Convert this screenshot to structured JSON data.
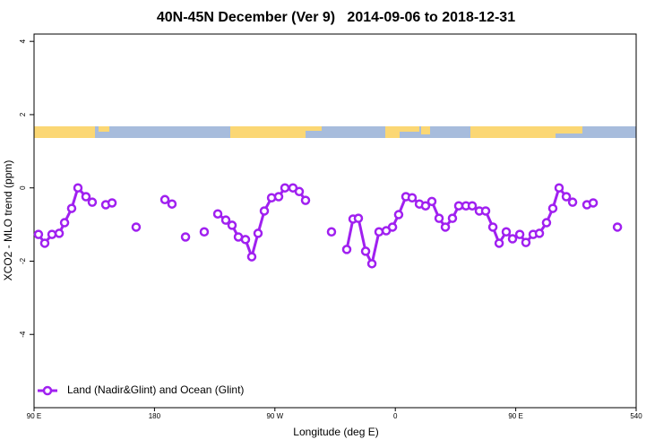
{
  "chart_data": {
    "type": "line",
    "title": "40N-45N December (Ver 9)   2014-09-06 to 2018-12-31",
    "xlabel": "Longitude (deg E)",
    "ylabel": "XCO2 - MLO trend (ppm)",
    "xlim": [
      90,
      540
    ],
    "ylim": [
      -6,
      4.2
    ],
    "xticks": [
      {
        "value": 90,
        "label": "90 E"
      },
      180,
      {
        "value": 270,
        "label": "90 W"
      },
      {
        "value": 360,
        "label": "0"
      },
      {
        "value": 450,
        "label": "90 E"
      },
      540
    ],
    "yticks": [
      4,
      2,
      0,
      -2,
      -4
    ],
    "legend": "bottom-left",
    "x": [
      93.3,
      98,
      103.4,
      108.8,
      112.8,
      118.1,
      122.8,
      128.8,
      133.5,
      138.5,
      143.6,
      148.3,
      157,
      166.3,
      177,
      187.8,
      193.1,
      198,
      203.2,
      210,
      217.2,
      222,
      227.3,
      233.3,
      238,
      242.7,
      248,
      252.7,
      257.4,
      262.1,
      267.5,
      272.8,
      277.5,
      283.5,
      288.2,
      292.9,
      302,
      312.3,
      318,
      323.7,
      328.4,
      332.4,
      337.8,
      342.5,
      347.8,
      353.2,
      357.9,
      362.5,
      367.9,
      372.6,
      378,
      382.6,
      387.3,
      392.7,
      397.4,
      402.7,
      407.4,
      412.8,
      417.5,
      422.8,
      427.5,
      432.9,
      437.6,
      442.9,
      447.6,
      453,
      457.6,
      463,
      467.7,
      473,
      477.7,
      482.4,
      487.8,
      492.5,
      498,
      503.2,
      507.9,
      517,
      526
    ],
    "series": [
      {
        "name": "Land (Nadir&Glint) and Ocean (Glint)",
        "color": "#a020f0",
        "values": [
          -1.27,
          -1.51,
          -1.27,
          -1.24,
          -0.95,
          -0.56,
          0.0,
          -0.24,
          -0.39,
          null,
          -0.46,
          -0.41,
          null,
          -1.07,
          null,
          -0.32,
          -0.44,
          null,
          -1.34,
          null,
          -1.2,
          null,
          -0.71,
          -0.88,
          -1.02,
          -1.34,
          -1.41,
          -1.88,
          -1.24,
          -0.63,
          -0.27,
          -0.24,
          0.0,
          0.0,
          -0.1,
          -0.34,
          null,
          -1.2,
          null,
          -1.68,
          -0.85,
          -0.83,
          -1.73,
          -2.07,
          -1.2,
          -1.17,
          -1.07,
          -0.73,
          -0.24,
          -0.27,
          -0.44,
          -0.49,
          -0.37,
          -0.83,
          -1.07,
          -0.83,
          -0.49,
          -0.49,
          -0.49,
          -0.63,
          -0.63,
          -1.07,
          -1.51,
          -1.2,
          -1.39,
          -1.27,
          -1.49,
          -1.27,
          -1.24,
          -0.95,
          -0.56,
          0.0,
          -0.24,
          -0.39,
          null,
          -0.46,
          -0.41,
          null,
          -1.07
        ]
      }
    ]
  }
}
